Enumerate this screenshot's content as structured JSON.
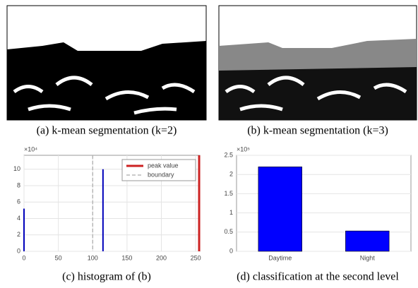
{
  "images": [
    {
      "caption": "(a) k-mean segmentation (k=2)"
    },
    {
      "caption": "(b) k-mean segmentation (k=3)"
    }
  ],
  "chart_data": [
    {
      "type": "spike",
      "caption": "(c) histogram of (b)",
      "exponent": "×10⁴",
      "x": [
        0,
        115
      ],
      "values": [
        5.2,
        10
      ],
      "color": "#0000bb",
      "markers": [
        {
          "name": "peak value",
          "color": "#cc2222",
          "x": 255,
          "dash": false
        },
        {
          "name": "boundary",
          "color": "#aaaaaa",
          "x": 100,
          "dash": true
        }
      ],
      "xlim": [
        0,
        256
      ],
      "ylim": [
        0,
        11.7
      ],
      "xticks": [
        0,
        50,
        100,
        150,
        200,
        250
      ],
      "yticks": [
        0,
        2,
        4,
        6,
        8,
        10
      ],
      "grid": true,
      "legend": "upper right"
    },
    {
      "type": "bar",
      "caption": "(d) classification at the second level",
      "exponent": "×10⁵",
      "categories": [
        "Daytime",
        "Night"
      ],
      "values": [
        2.2,
        0.53
      ],
      "color": "#0000ff",
      "ylim": [
        0,
        2.5
      ],
      "yticks": [
        0,
        0.5,
        1,
        1.5,
        2,
        2.5
      ],
      "grid": true
    }
  ]
}
